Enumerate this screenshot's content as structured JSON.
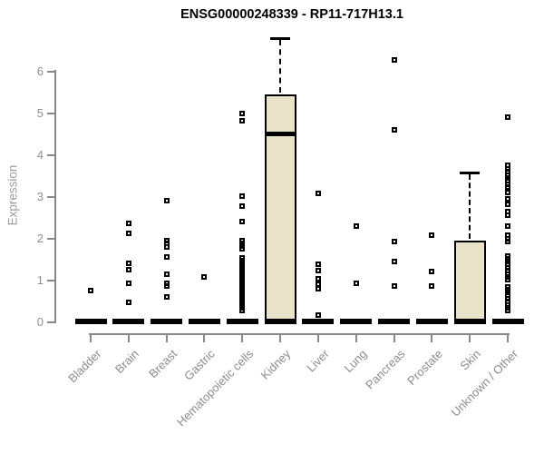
{
  "title": "ENSG00000248339 - RP11-717H13.1",
  "chart_data": {
    "type": "box",
    "title": "ENSG00000248339 - RP11-717H13.1",
    "xlabel": "",
    "ylabel": "Expression",
    "ylim": [
      0,
      6
    ],
    "yticks": [
      0,
      1,
      2,
      3,
      4,
      5,
      6
    ],
    "grid": false,
    "legend": "none",
    "colors": {
      "box_fill": "#e9e3c9",
      "box_border": "#000000",
      "axis": "#888888",
      "tick_text": "#8c8c8c",
      "title_text": "#000000"
    },
    "categories": [
      "Bladder",
      "Brain",
      "Breast",
      "Gastric",
      "Hematopoietic cells",
      "Kidney",
      "Liver",
      "Lung",
      "Pancreas",
      "Prostate",
      "Skin",
      "Unknown / Other"
    ],
    "series": [
      {
        "label": "Bladder",
        "q1": 0,
        "median": 0,
        "q3": 0,
        "whisker_high": 0,
        "points": [
          0.75
        ]
      },
      {
        "label": "Brain",
        "q1": 0,
        "median": 0,
        "q3": 0,
        "whisker_high": 0,
        "points": [
          2.35,
          2.1,
          1.39,
          1.25,
          0.91,
          0.45
        ]
      },
      {
        "label": "Breast",
        "q1": 0,
        "median": 0,
        "q3": 0,
        "whisker_high": 0,
        "points": [
          2.9,
          1.93,
          1.86,
          1.79,
          1.54,
          1.12,
          0.92,
          0.85,
          0.59
        ]
      },
      {
        "label": "Gastric",
        "q1": 0,
        "median": 0,
        "q3": 0,
        "whisker_high": 0,
        "points": [
          1.07
        ]
      },
      {
        "label": "Hematopoietic cells",
        "q1": 0,
        "median": 0,
        "q3": 0,
        "whisker_high": 0,
        "points": [
          4.97,
          4.81,
          2.99,
          2.77,
          2.4,
          1.93,
          1.87,
          1.8,
          1.74,
          1.52,
          1.46,
          1.4,
          1.33,
          1.27,
          1.21,
          1.15,
          1.08,
          1.02,
          0.96,
          0.9,
          0.83,
          0.77,
          0.71,
          0.65,
          0.58,
          0.52,
          0.46,
          0.4,
          0.33,
          0.27
        ]
      },
      {
        "label": "Kidney",
        "q1": 0,
        "median": 4.48,
        "q3": 5.43,
        "whisker_high": 6.78,
        "points": []
      },
      {
        "label": "Liver",
        "q1": 0,
        "median": 0,
        "q3": 0,
        "whisker_high": 0,
        "points": [
          3.06,
          1.37,
          1.21,
          1.03,
          0.9,
          0.78,
          0.16
        ]
      },
      {
        "label": "Lung",
        "q1": 0,
        "median": 0,
        "q3": 0,
        "whisker_high": 0,
        "points": [
          2.28,
          0.92
        ]
      },
      {
        "label": "Pancreas",
        "q1": 0,
        "median": 0,
        "q3": 0,
        "whisker_high": 0,
        "points": [
          6.26,
          4.59,
          1.91,
          1.43,
          0.85
        ]
      },
      {
        "label": "Prostate",
        "q1": 0,
        "median": 0,
        "q3": 0,
        "whisker_high": 0,
        "points": [
          2.07,
          1.19,
          0.85
        ]
      },
      {
        "label": "Skin",
        "q1": 0,
        "median": 0,
        "q3": 1.93,
        "whisker_high": 3.57,
        "points": []
      },
      {
        "label": "Unknown / Other",
        "q1": 0,
        "median": 0,
        "q3": 0,
        "whisker_high": 0,
        "points": [
          4.89,
          3.74,
          3.66,
          3.59,
          3.51,
          3.44,
          3.37,
          3.29,
          3.22,
          3.08,
          2.94,
          2.8,
          2.63,
          2.55,
          2.29,
          2.06,
          1.98,
          1.91,
          1.57,
          1.5,
          1.43,
          1.36,
          1.29,
          1.21,
          1.14,
          1.07,
          1.0,
          0.83,
          0.76,
          0.69,
          0.62,
          0.55,
          0.47,
          0.4,
          0.33,
          0.26
        ]
      }
    ]
  }
}
